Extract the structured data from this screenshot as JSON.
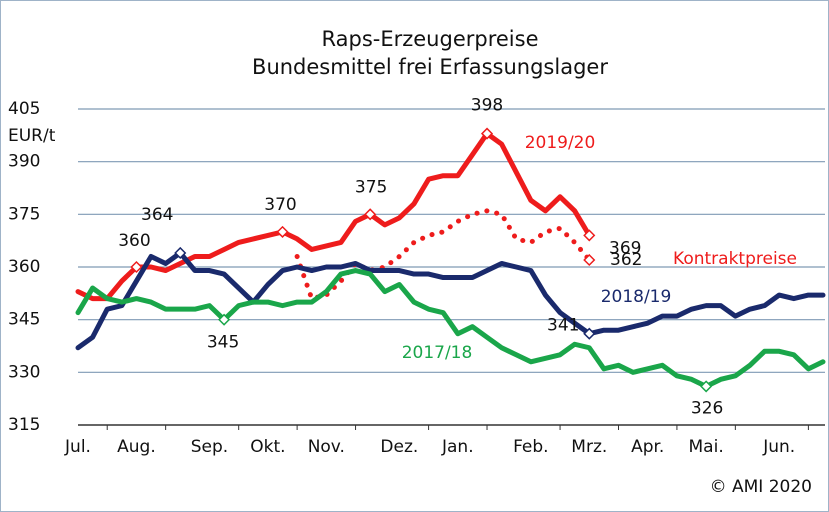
{
  "chart_data": {
    "type": "line",
    "title": "Raps-Erzeugerpreise",
    "subtitle": "Bundesmittel frei Erfassungslager",
    "y_label": "EUR/t",
    "source": "© AMI 2020",
    "categories": [
      "Jul.",
      null,
      null,
      null,
      "Aug.",
      null,
      null,
      null,
      null,
      "Sep.",
      null,
      null,
      null,
      "Okt.",
      null,
      null,
      null,
      "Nov.",
      null,
      null,
      null,
      null,
      "Dez.",
      null,
      null,
      null,
      "Jan.",
      null,
      null,
      null,
      null,
      "Feb.",
      null,
      null,
      null,
      "Mrz.",
      null,
      null,
      null,
      "Apr.",
      null,
      null,
      null,
      "Mai.",
      null,
      null,
      null,
      null,
      "Jun.",
      null,
      null,
      null
    ],
    "ylim": [
      315,
      405
    ],
    "yticks": [
      315,
      330,
      345,
      360,
      375,
      390,
      405
    ],
    "grid": true,
    "series": [
      {
        "name": "2019/20",
        "color": "#ee1c1c",
        "style": "solid",
        "markers": [
          4,
          14,
          20,
          28,
          35
        ],
        "values": [
          353,
          351,
          351,
          356,
          360,
          360,
          359,
          361,
          363,
          363,
          365,
          367,
          368,
          369,
          370,
          368,
          365,
          366,
          367,
          373,
          375,
          372,
          374,
          378,
          385,
          386,
          386,
          392,
          398,
          395,
          387,
          379,
          376,
          380,
          376,
          369,
          null,
          null,
          null,
          null,
          null,
          null,
          null,
          null,
          null,
          null,
          null,
          null,
          null,
          null,
          null,
          null
        ]
      },
      {
        "name": "Kontraktpreise",
        "color": "#ee1c1c",
        "style": "dotted",
        "markers": [
          35
        ],
        "values": [
          null,
          null,
          null,
          null,
          null,
          null,
          null,
          null,
          null,
          null,
          null,
          null,
          null,
          null,
          null,
          363,
          351,
          352,
          356,
          361,
          359,
          360,
          363,
          367,
          369,
          370,
          373,
          375,
          376,
          375,
          368,
          367,
          370,
          371,
          367,
          362,
          null,
          null,
          null,
          null,
          null,
          null,
          null,
          null,
          null,
          null,
          null,
          null,
          null,
          null,
          null,
          null
        ]
      },
      {
        "name": "2018/19",
        "color": "#1a2a6c",
        "style": "solid",
        "markers": [
          7,
          35
        ],
        "values": [
          337,
          340,
          348,
          349,
          356,
          363,
          361,
          364,
          359,
          359,
          358,
          354,
          350,
          355,
          359,
          360,
          359,
          360,
          360,
          361,
          359,
          359,
          359,
          358,
          358,
          357,
          357,
          357,
          359,
          361,
          360,
          359,
          352,
          347,
          344,
          341,
          342,
          342,
          343,
          344,
          346,
          346,
          348,
          349,
          349,
          346,
          348,
          349,
          352,
          351,
          352,
          352
        ]
      },
      {
        "name": "2017/18",
        "color": "#1aa64a",
        "style": "solid",
        "markers": [
          10,
          43
        ],
        "values": [
          347,
          354,
          351,
          350,
          351,
          350,
          348,
          348,
          348,
          349,
          345,
          349,
          350,
          350,
          349,
          350,
          350,
          353,
          358,
          359,
          358,
          353,
          355,
          350,
          348,
          347,
          341,
          343,
          340,
          337,
          335,
          333,
          334,
          335,
          338,
          337,
          331,
          332,
          330,
          331,
          332,
          329,
          328,
          326,
          328,
          329,
          332,
          336,
          336,
          335,
          331,
          333
        ]
      }
    ]
  }
}
